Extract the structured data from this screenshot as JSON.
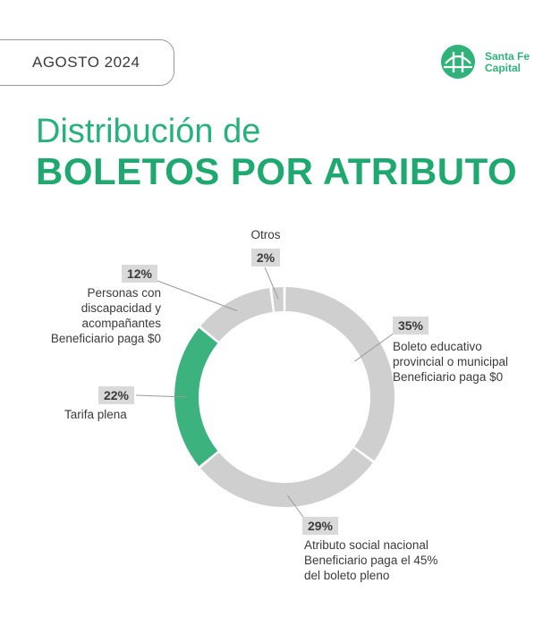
{
  "header": {
    "date": "AGOSTO 2024",
    "brand_line1": "Santa Fe",
    "brand_line2": "Capital",
    "logo_icon": "bridge-icon",
    "brand_color": "#2fb37a"
  },
  "title": {
    "line1": "Distribución de",
    "line2": "BOLETOS POR ATRIBUTO"
  },
  "chart_data": {
    "type": "pie",
    "variant": "donut",
    "title": "Distribución de BOLETOS POR ATRIBUTO",
    "start": "top",
    "direction": "clockwise",
    "slices": [
      {
        "label": "35%",
        "value": 35,
        "description": [
          "Boleto educativo",
          "provincial o municipal",
          "Beneficiario paga $0"
        ],
        "color": "#cfcfcf"
      },
      {
        "label": "29%",
        "value": 29,
        "description": [
          "Atributo social nacional",
          "Beneficiario paga el 45%",
          "del boleto pleno"
        ],
        "color": "#cfcfcf"
      },
      {
        "label": "22%",
        "value": 22,
        "description": [
          "Tarifa plena"
        ],
        "color": "#3cb37f"
      },
      {
        "label": "12%",
        "value": 12,
        "description": [
          "Personas con",
          "discapacidad y",
          "acompañantes",
          "Beneficiario paga $0"
        ],
        "color": "#cfcfcf"
      },
      {
        "label": "2%",
        "value": 2,
        "description": [
          "Otros"
        ],
        "color": "#cfcfcf"
      }
    ]
  }
}
